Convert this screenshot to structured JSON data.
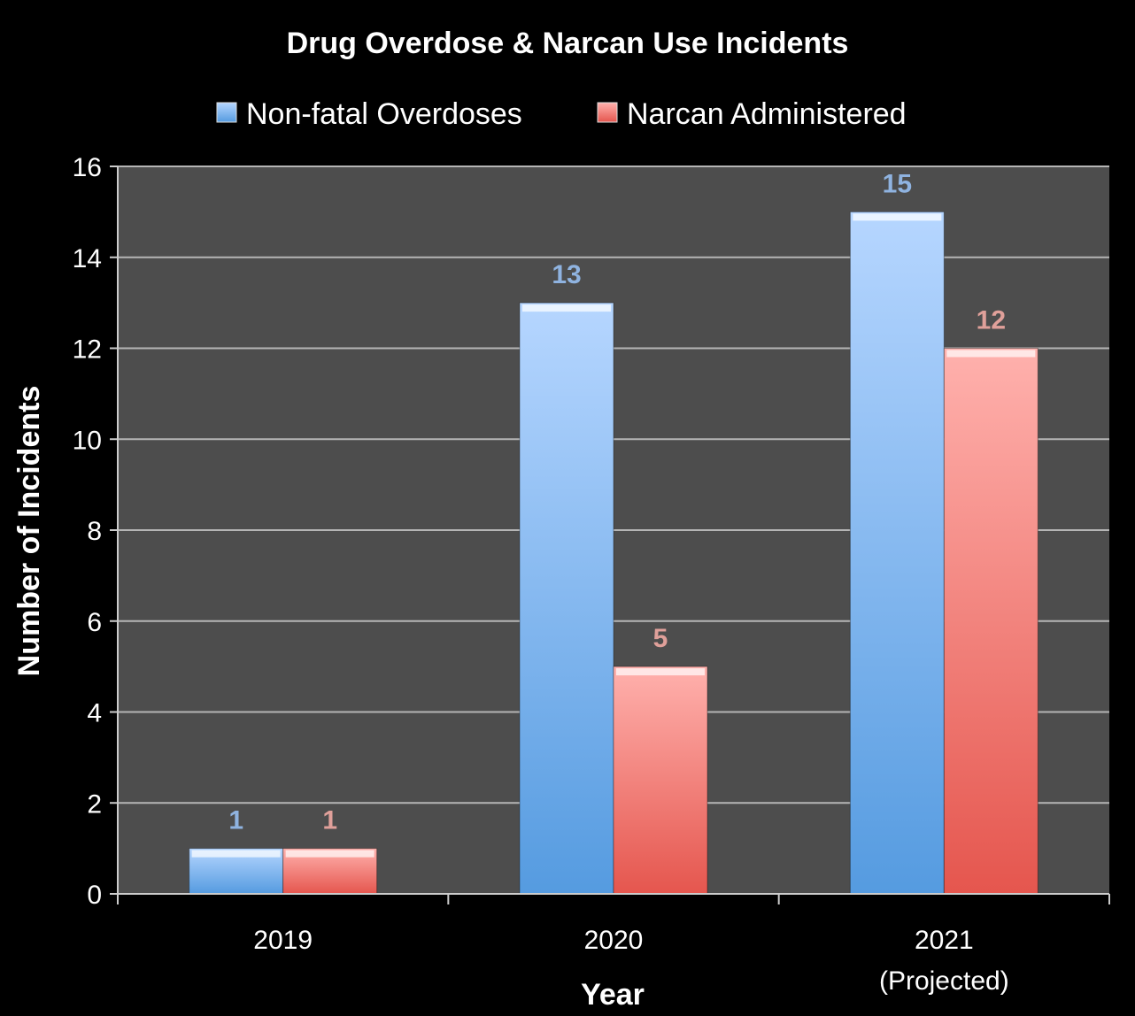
{
  "chart_data": {
    "type": "bar",
    "title": "Drug Overdose & Narcan Use Incidents",
    "xlabel": "Year",
    "ylabel": "Number of Incidents",
    "categories": [
      [
        "2019"
      ],
      [
        "2020"
      ],
      [
        "2021",
        "(Projected)"
      ]
    ],
    "series": [
      {
        "name": "Non-fatal Overdoses",
        "values": [
          1,
          13,
          15
        ],
        "color": "#8fbef5",
        "label_color": "#8fb3e0"
      },
      {
        "name": "Narcan Administered",
        "values": [
          1,
          5,
          12
        ],
        "color": "#f59a94",
        "label_color": "#e0a09a"
      }
    ],
    "ylim": [
      0,
      16
    ],
    "yticks": [
      0,
      2,
      4,
      6,
      8,
      10,
      12,
      14,
      16
    ],
    "grid": true,
    "legend": "top",
    "background": "#000000",
    "plot_background": "#4d4d4d"
  }
}
